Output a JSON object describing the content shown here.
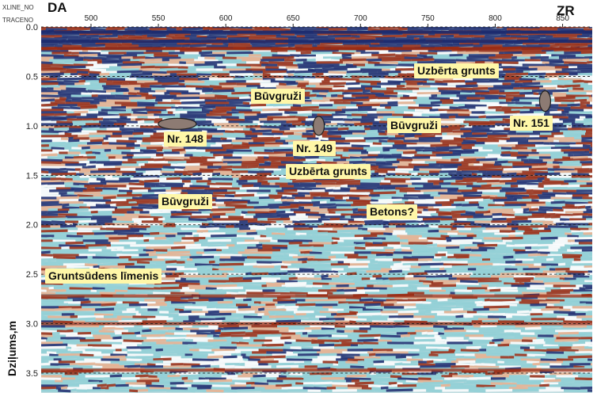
{
  "corner_labels": {
    "xline": "XLINE_NO",
    "trace": "TRACENO"
  },
  "directions": {
    "left": "DA",
    "right": "ZR"
  },
  "axis": {
    "ylabel": "Dziļums,m",
    "x_ticks": [
      "500",
      "550",
      "600",
      "650",
      "700",
      "750",
      "800",
      "850"
    ],
    "y_ticks": [
      "0.0",
      "0.5",
      "1.0",
      "1.5",
      "2.0",
      "2.5",
      "3.0",
      "3.5"
    ]
  },
  "annotations": {
    "uzberta_top": "Uzbērta grunts",
    "buvgruzi_1": "Būvgruži",
    "nr148": "Nr. 148",
    "nr149": "Nr. 149",
    "uzberta_mid": "Uzbērta grunts",
    "buvgruzi_2": "Būvgruži",
    "nr151": "Nr. 151",
    "buvgruzi_3": "Būvgruži",
    "betons": "Betons?",
    "gruntsudens": "Gruntsūdens līmenis"
  },
  "colors": {
    "background": "#ffffff",
    "reflector_dark": "#1c2a6e",
    "reflector_red": "#9a2a12",
    "reflector_cyan": "#8fd0d6",
    "callout_bg": "#fff7a8",
    "object_fill": "#8d7b73"
  },
  "chart_data": {
    "type": "heatmap",
    "description_free": true,
    "x_axis": {
      "label": "XLINE_NO / TRACENO",
      "ticks": [
        500,
        550,
        600,
        650,
        700,
        750,
        800,
        850
      ],
      "range": [
        463,
        872
      ]
    },
    "y_axis": {
      "label": "Dziļums,m",
      "ticks": [
        0.0,
        0.5,
        1.0,
        1.5,
        2.0,
        2.5,
        3.0,
        3.5
      ],
      "range": [
        0.0,
        3.7
      ],
      "inverted": true
    },
    "grid": {
      "horizontal_dashed": [
        0.0,
        0.5,
        1.0,
        1.5,
        2.0,
        2.5,
        3.0,
        3.5
      ]
    },
    "objects": [
      {
        "label": "Nr. 148",
        "x": 564,
        "depth": 0.98
      },
      {
        "label": "Nr. 149",
        "x": 669,
        "depth": 1.0
      },
      {
        "label": "Nr. 151",
        "x": 837,
        "depth": 0.75
      }
    ],
    "annotations": [
      {
        "text": "Uzbērta grunts",
        "x": 780,
        "depth": 0.45
      },
      {
        "text": "Būvgruži",
        "x": 651,
        "depth": 0.7
      },
      {
        "text": "Būvgruži",
        "x": 752,
        "depth": 1.0
      },
      {
        "text": "Uzbērta grunts",
        "x": 686,
        "depth": 1.48
      },
      {
        "text": "Būvgruži",
        "x": 562,
        "depth": 1.82
      },
      {
        "text": "Betons?",
        "x": 735,
        "depth": 1.9
      },
      {
        "text": "Gruntsūdens līmenis",
        "x": 510,
        "depth": 2.55
      }
    ]
  }
}
